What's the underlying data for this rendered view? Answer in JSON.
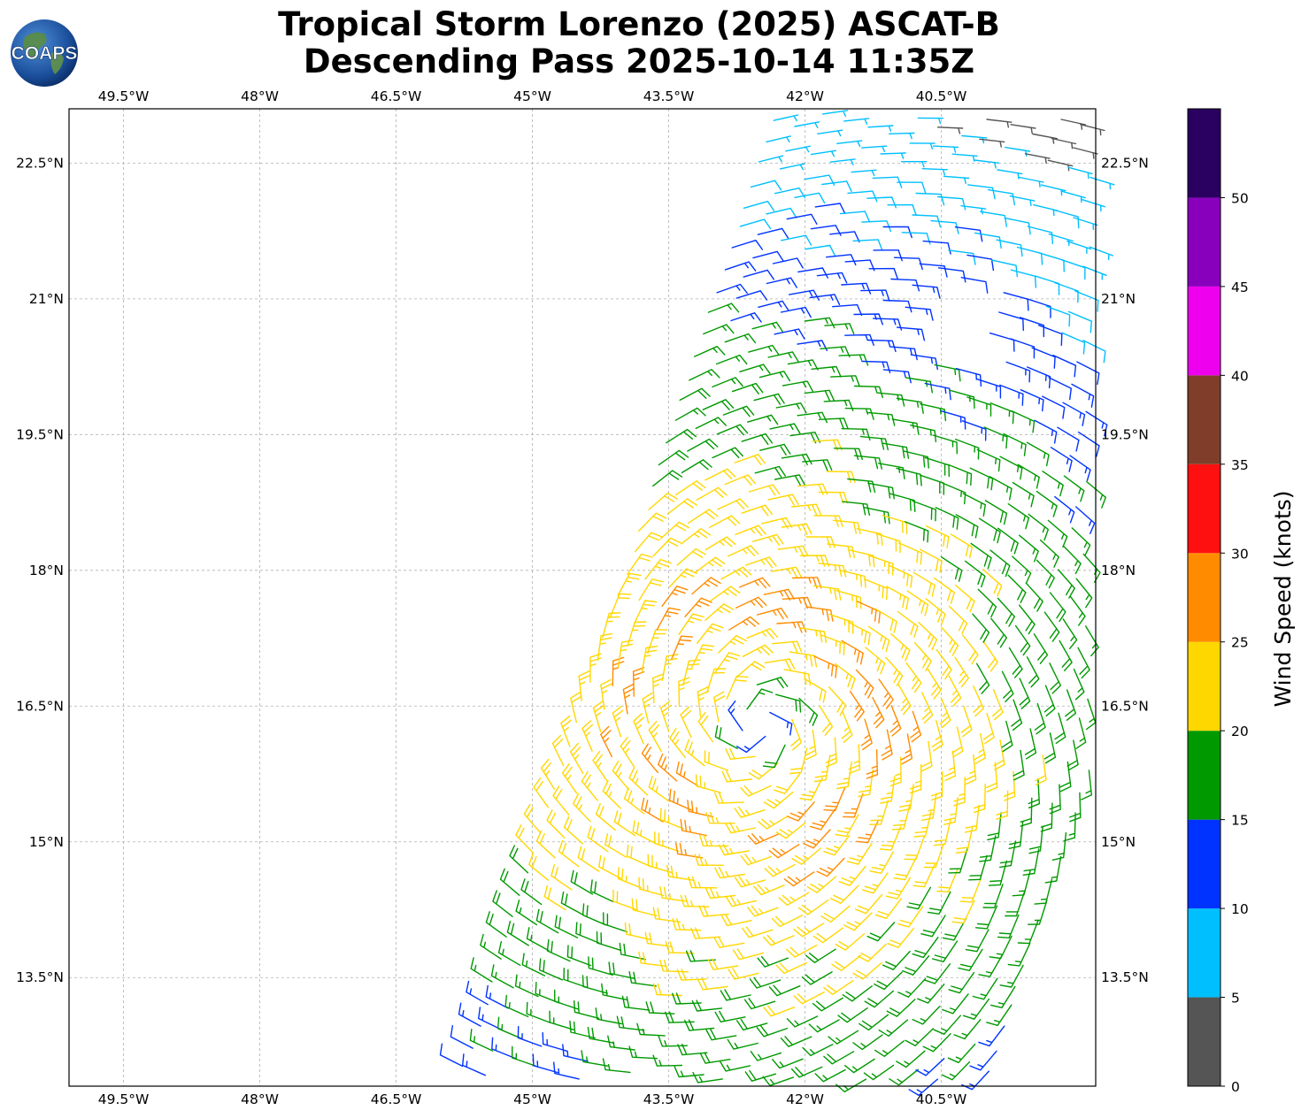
{
  "title": {
    "line1": "Tropical Storm Lorenzo (2025) ASCAT-B",
    "line2": "Descending Pass 2025-10-14 11:35Z"
  },
  "logo": {
    "text": "COAPS",
    "icon": "globe-icon"
  },
  "map": {
    "lon_range": [
      -50.1,
      -38.8
    ],
    "lat_range": [
      12.3,
      23.1
    ],
    "lon_ticks": [
      {
        "value": -49.5,
        "label": "49.5°W"
      },
      {
        "value": -48.0,
        "label": "48°W"
      },
      {
        "value": -46.5,
        "label": "46.5°W"
      },
      {
        "value": -45.0,
        "label": "45°W"
      },
      {
        "value": -43.5,
        "label": "43.5°W"
      },
      {
        "value": -42.0,
        "label": "42°W"
      },
      {
        "value": -40.5,
        "label": "40.5°W"
      }
    ],
    "lat_ticks": [
      {
        "value": 22.5,
        "label": "22.5°N"
      },
      {
        "value": 21.0,
        "label": "21°N"
      },
      {
        "value": 19.5,
        "label": "19.5°N"
      },
      {
        "value": 18.0,
        "label": "18°N"
      },
      {
        "value": 16.5,
        "label": "16.5°N"
      },
      {
        "value": 15.0,
        "label": "15°N"
      },
      {
        "value": 13.5,
        "label": "13.5°N"
      }
    ],
    "gridlines": true,
    "storm_center": {
      "lon": -42.5,
      "lat": 16.3
    }
  },
  "colorbar": {
    "label": "Wind Speed (knots)",
    "ticks": [
      "0",
      "5",
      "10",
      "15",
      "20",
      "25",
      "30",
      "35",
      "40",
      "45",
      "50"
    ],
    "bins": [
      {
        "min": 0,
        "max": 5,
        "color": "#555555"
      },
      {
        "min": 5,
        "max": 10,
        "color": "#00bfff"
      },
      {
        "min": 10,
        "max": 15,
        "color": "#0033ff"
      },
      {
        "min": 15,
        "max": 20,
        "color": "#009900"
      },
      {
        "min": 20,
        "max": 25,
        "color": "#ffd700"
      },
      {
        "min": 25,
        "max": 30,
        "color": "#ff8c00"
      },
      {
        "min": 30,
        "max": 35,
        "color": "#ff1010"
      },
      {
        "min": 35,
        "max": 40,
        "color": "#803e2a"
      },
      {
        "min": 40,
        "max": 45,
        "color": "#ee00ee"
      },
      {
        "min": 45,
        "max": 50,
        "color": "#8800bb"
      },
      {
        "min": 50,
        "max": 55,
        "color": "#2a0060"
      }
    ]
  }
}
